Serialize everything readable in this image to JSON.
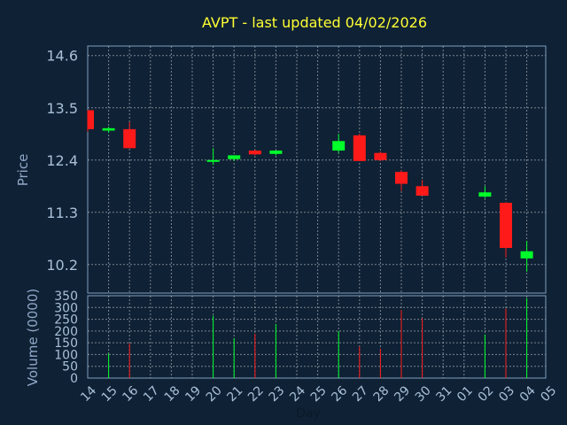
{
  "chart_data": {
    "type": "candlestick",
    "title": "AVPT - last updated 04/02/2026",
    "xlabel": "Day",
    "ylabel_price": "Price",
    "ylabel_volume": "Volume (0000)",
    "price_ylim": [
      9.6,
      14.8
    ],
    "price_ticks": [
      "14.6",
      "13.5",
      "12.4",
      "11.3",
      "10.2"
    ],
    "volume_ylim": [
      0,
      350
    ],
    "volume_ticks": [
      "350",
      "300",
      "250",
      "200",
      "150",
      "100",
      "50",
      "0"
    ],
    "x_tick_labels": [
      "14",
      "15",
      "16",
      "17",
      "18",
      "19",
      "20",
      "21",
      "22",
      "23",
      "24",
      "25",
      "26",
      "27",
      "28",
      "29",
      "30",
      "31",
      "01",
      "02",
      "03",
      "04",
      "05"
    ],
    "grid": true,
    "colors": {
      "background": "#0f2134",
      "axes": "#7fa0bf",
      "grid": "#d0d8e0",
      "title": "#ffff33",
      "tick_text": "#a8c0d8",
      "label_text": "#8fa8c8",
      "up": "#00ff2a",
      "down": "#ff1a1a"
    },
    "candles": [
      {
        "day": "14",
        "open": 13.45,
        "high": 13.45,
        "low": 13.0,
        "close": 13.05,
        "volume": 0
      },
      {
        "day": "15",
        "open": 13.02,
        "high": 13.1,
        "low": 12.98,
        "close": 13.07,
        "volume": 105
      },
      {
        "day": "16",
        "open": 13.05,
        "high": 13.2,
        "low": 12.65,
        "close": 12.65,
        "volume": 148
      },
      {
        "day": "20",
        "open": 12.37,
        "high": 12.65,
        "low": 12.3,
        "close": 12.4,
        "volume": 265
      },
      {
        "day": "21",
        "open": 12.42,
        "high": 12.5,
        "low": 12.38,
        "close": 12.5,
        "volume": 170
      },
      {
        "day": "22",
        "open": 12.6,
        "high": 12.62,
        "low": 12.5,
        "close": 12.52,
        "volume": 188
      },
      {
        "day": "23",
        "open": 12.53,
        "high": 12.6,
        "low": 12.5,
        "close": 12.6,
        "volume": 230
      },
      {
        "day": "26",
        "open": 12.6,
        "high": 12.95,
        "low": 12.55,
        "close": 12.8,
        "volume": 200
      },
      {
        "day": "27",
        "open": 12.92,
        "high": 12.95,
        "low": 12.38,
        "close": 12.38,
        "volume": 135
      },
      {
        "day": "28",
        "open": 12.55,
        "high": 12.58,
        "low": 12.38,
        "close": 12.4,
        "volume": 125
      },
      {
        "day": "29",
        "open": 12.15,
        "high": 12.18,
        "low": 11.75,
        "close": 11.9,
        "volume": 290
      },
      {
        "day": "30",
        "open": 11.85,
        "high": 11.98,
        "low": 11.65,
        "close": 11.65,
        "volume": 255
      },
      {
        "day": "02",
        "open": 11.63,
        "high": 11.85,
        "low": 11.6,
        "close": 11.72,
        "volume": 185
      },
      {
        "day": "03",
        "open": 11.5,
        "high": 11.52,
        "low": 10.35,
        "close": 10.55,
        "volume": 295
      },
      {
        "day": "04",
        "open": 10.33,
        "high": 10.7,
        "low": 10.05,
        "close": 10.48,
        "volume": 340
      }
    ]
  }
}
